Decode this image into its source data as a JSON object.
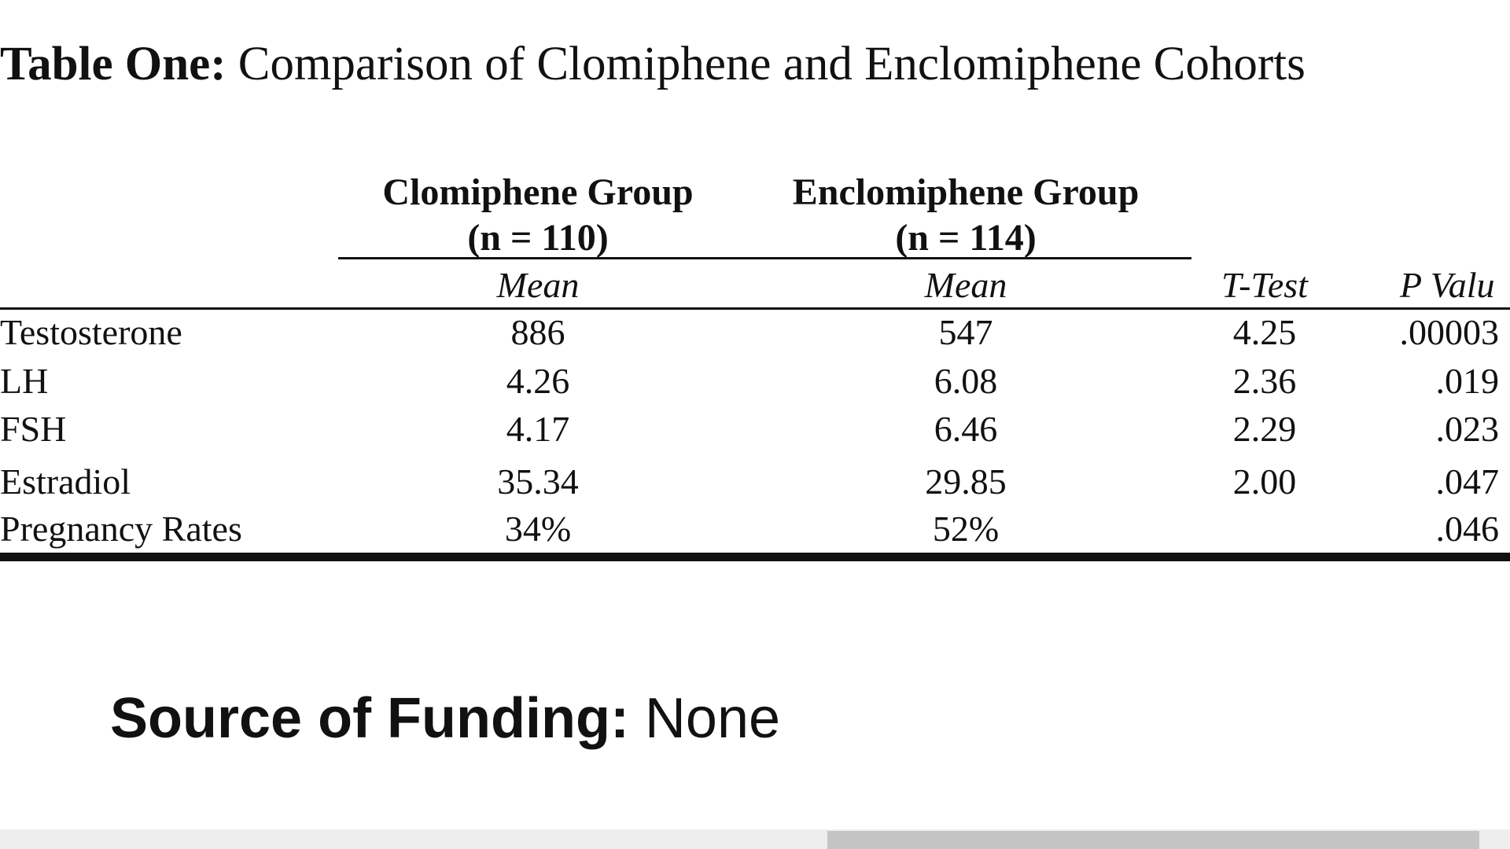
{
  "table": {
    "title_bold": "Table One:",
    "title_rest": " Comparison of Clomiphene and Enclomiphene Cohorts",
    "groups": [
      {
        "name": "Clomiphene Group",
        "n": "(n = 110)"
      },
      {
        "name": "Enclomiphene Group",
        "n": "(n = 114)"
      }
    ],
    "columns": {
      "mean1": "Mean",
      "mean2": "Mean",
      "ttest": "T-Test",
      "pval": "P Valu"
    },
    "rows": [
      {
        "label": "Testosterone",
        "mean1": "886",
        "mean2": "547",
        "ttest": "4.25",
        "pval": ".00003"
      },
      {
        "label": "LH",
        "mean1": "4.26",
        "mean2": "6.08",
        "ttest": "2.36",
        "pval": ".019"
      },
      {
        "label": "FSH",
        "mean1": "4.17",
        "mean2": "6.46",
        "ttest": "2.29",
        "pval": ".023"
      },
      {
        "label": "Estradiol",
        "mean1": "35.34",
        "mean2": "29.85",
        "ttest": "2.00",
        "pval": ".047"
      },
      {
        "label": "Pregnancy Rates",
        "mean1": "34%",
        "mean2": "52%",
        "ttest": "",
        "pval": ".046"
      }
    ]
  },
  "funding": {
    "label": "Source of Funding:",
    "value": " None"
  }
}
